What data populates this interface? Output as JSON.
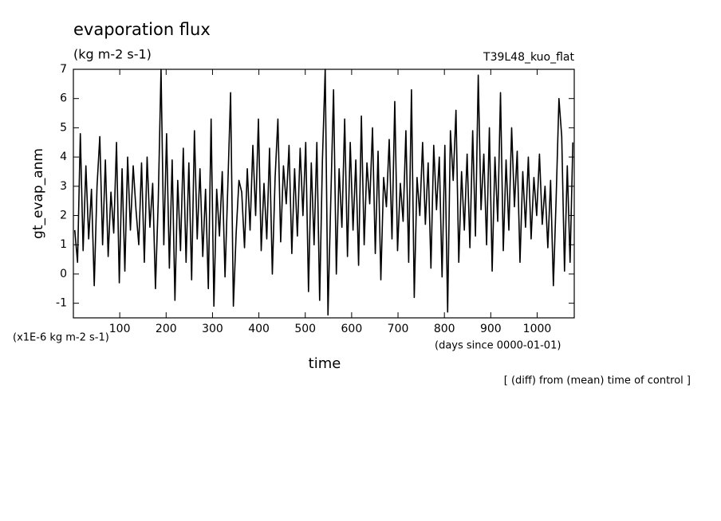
{
  "chart_data": {
    "type": "line",
    "title": "evaporation flux",
    "subtitle": "(kg m-2 s-1)",
    "annotation_run": "T39L48_kuo_flat",
    "ylabel": "gt_evap_anm",
    "yunits": "(x1E-6 kg m-2 s-1)",
    "xlabel": "time",
    "xunits": "(days since 0000-01-01)",
    "note": "[ (diff) from (mean) time of control ]",
    "xlim": [
      0,
      1080
    ],
    "xticks": [
      100,
      200,
      300,
      400,
      500,
      600,
      700,
      800,
      900,
      1000
    ],
    "ylim": [
      -1.5,
      7
    ],
    "yticks": [
      -1,
      0,
      1,
      2,
      3,
      4,
      5,
      6,
      7
    ],
    "grid": false,
    "series": [
      {
        "color": "#000000",
        "x": [
          3,
          9,
          15,
          21,
          27,
          33,
          39,
          45,
          51,
          57,
          63,
          69,
          75,
          81,
          87,
          93,
          99,
          105,
          111,
          117,
          123,
          129,
          135,
          141,
          147,
          153,
          159,
          165,
          171,
          177,
          183,
          189,
          195,
          201,
          207,
          213,
          219,
          225,
          231,
          237,
          243,
          249,
          255,
          261,
          267,
          273,
          279,
          285,
          291,
          297,
          303,
          309,
          315,
          321,
          327,
          333,
          339,
          345,
          351,
          357,
          363,
          369,
          375,
          381,
          387,
          393,
          399,
          405,
          411,
          417,
          423,
          429,
          435,
          441,
          447,
          453,
          459,
          465,
          471,
          477,
          483,
          489,
          495,
          501,
          507,
          513,
          519,
          525,
          531,
          537,
          543,
          549,
          555,
          561,
          567,
          573,
          579,
          585,
          591,
          597,
          603,
          609,
          615,
          621,
          627,
          633,
          639,
          645,
          651,
          657,
          663,
          669,
          675,
          681,
          687,
          693,
          699,
          705,
          711,
          717,
          723,
          729,
          735,
          741,
          747,
          753,
          759,
          765,
          771,
          777,
          783,
          789,
          795,
          801,
          807,
          813,
          819,
          825,
          831,
          837,
          843,
          849,
          855,
          861,
          867,
          873,
          879,
          885,
          891,
          897,
          903,
          909,
          915,
          921,
          927,
          933,
          939,
          945,
          951,
          957,
          963,
          969,
          975,
          981,
          987,
          993,
          999,
          1005,
          1011,
          1017,
          1023,
          1029,
          1035,
          1041,
          1047,
          1053,
          1059,
          1065,
          1071,
          1077
        ],
        "values": [
          1.5,
          0.4,
          4.8,
          0.8,
          3.7,
          1.2,
          2.9,
          -0.4,
          3.0,
          4.7,
          1.0,
          3.9,
          0.6,
          2.8,
          1.4,
          4.5,
          -0.3,
          3.6,
          0.1,
          4.0,
          1.5,
          3.7,
          2.2,
          1.0,
          3.8,
          0.4,
          4.0,
          1.6,
          3.1,
          -0.5,
          2.5,
          7.0,
          1.0,
          4.8,
          0.2,
          3.9,
          -0.9,
          3.2,
          0.8,
          4.3,
          0.4,
          3.8,
          -0.2,
          4.9,
          1.2,
          3.6,
          0.6,
          2.9,
          -0.5,
          5.3,
          -1.1,
          2.9,
          1.3,
          3.5,
          -0.1,
          3.0,
          6.2,
          -1.1,
          1.4,
          3.2,
          2.8,
          0.9,
          3.6,
          1.5,
          4.4,
          2.0,
          5.3,
          0.8,
          3.1,
          1.2,
          4.3,
          0.0,
          3.3,
          5.3,
          1.1,
          3.7,
          2.4,
          4.4,
          0.7,
          3.6,
          1.3,
          4.3,
          2.0,
          4.5,
          -0.6,
          3.8,
          1.0,
          4.5,
          -0.9,
          3.9,
          7.0,
          -1.4,
          2.5,
          6.3,
          0.0,
          3.6,
          1.6,
          5.3,
          0.6,
          4.5,
          1.5,
          3.9,
          0.3,
          5.4,
          1.0,
          3.8,
          2.4,
          5.0,
          0.7,
          4.2,
          -0.2,
          3.3,
          2.3,
          4.6,
          1.2,
          5.9,
          0.8,
          3.1,
          1.8,
          4.9,
          0.4,
          6.3,
          -0.8,
          3.3,
          2.0,
          4.5,
          1.7,
          3.8,
          0.2,
          4.4,
          2.2,
          4.0,
          -0.1,
          4.4,
          -1.3,
          4.9,
          3.2,
          5.6,
          0.4,
          3.5,
          1.5,
          4.1,
          0.9,
          4.9,
          1.3,
          6.8,
          2.2,
          4.1,
          1.0,
          5.0,
          0.1,
          4.0,
          1.8,
          6.2,
          0.8,
          3.9,
          1.5,
          5.0,
          2.3,
          4.2,
          0.4,
          3.5,
          1.6,
          4.0,
          1.2,
          3.3,
          2.0,
          4.1,
          1.7,
          3.0,
          0.9,
          3.2,
          -0.4,
          2.6,
          6.0,
          4.7,
          0.1,
          3.7,
          0.4,
          4.5
        ]
      }
    ]
  }
}
